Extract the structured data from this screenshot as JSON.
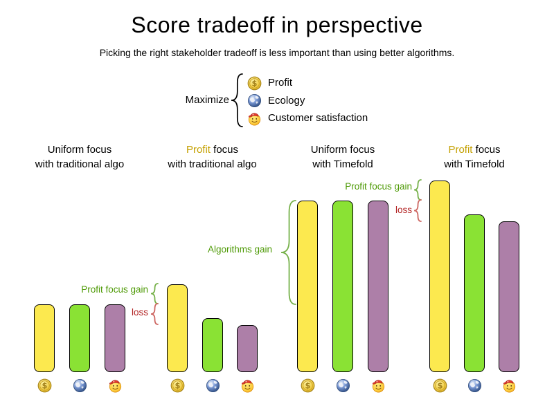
{
  "title": "Score tradeoff in perspective",
  "subtitle": "Picking the right stakeholder tradeoff is less important than using better algorithms.",
  "legend": {
    "maximize_label": "Maximize",
    "items": [
      {
        "icon": "coin-icon",
        "label": "Profit"
      },
      {
        "icon": "globe-icon",
        "label": "Ecology"
      },
      {
        "icon": "smiley-icon",
        "label": "Customer satisfaction"
      }
    ]
  },
  "colors": {
    "profit_bar": "#fce94f",
    "ecology_bar": "#8ae234",
    "customer_bar": "#ad7fa8",
    "bar_border": "#000000",
    "gain_green": "#4e9a06",
    "gain_brace_green": "#76b14a",
    "loss_red": "#b22222",
    "loss_brace_red": "#cd6661",
    "profit_word_gold": "#c4a000"
  },
  "chart_data": {
    "type": "bar",
    "unit": "relative score (uniform focus with traditional algo = 100)",
    "stakeholders": [
      "Profit",
      "Ecology",
      "Customer satisfaction"
    ],
    "stakeholder_icons": [
      "coin-icon",
      "globe-icon",
      "smiley-icon"
    ],
    "groups": [
      {
        "title_parts": [
          {
            "text": "Uniform focus",
            "highlight": false
          }
        ],
        "subtitle": "with traditional algo",
        "values": [
          100,
          100,
          100
        ]
      },
      {
        "title_parts": [
          {
            "text": "Profit",
            "highlight": true
          },
          {
            "text": " focus",
            "highlight": false
          }
        ],
        "subtitle": "with traditional algo",
        "values": [
          130,
          80,
          69
        ]
      },
      {
        "title_parts": [
          {
            "text": "Uniform focus",
            "highlight": false
          }
        ],
        "subtitle": "with Timefold",
        "values": [
          253,
          253,
          253
        ]
      },
      {
        "title_parts": [
          {
            "text": "Profit",
            "highlight": true
          },
          {
            "text": " focus",
            "highlight": false
          }
        ],
        "subtitle": "with Timefold",
        "values": [
          283,
          233,
          222
        ]
      }
    ],
    "annotations": [
      {
        "id": "profit-gain-traditional",
        "text": "Profit focus gain",
        "kind": "gain"
      },
      {
        "id": "loss-traditional",
        "text": "loss",
        "kind": "loss"
      },
      {
        "id": "algorithms-gain",
        "text": "Algorithms gain",
        "kind": "gain"
      },
      {
        "id": "profit-gain-timefold",
        "text": "Profit focus gain",
        "kind": "gain"
      },
      {
        "id": "loss-timefold",
        "text": "loss",
        "kind": "loss"
      }
    ]
  }
}
